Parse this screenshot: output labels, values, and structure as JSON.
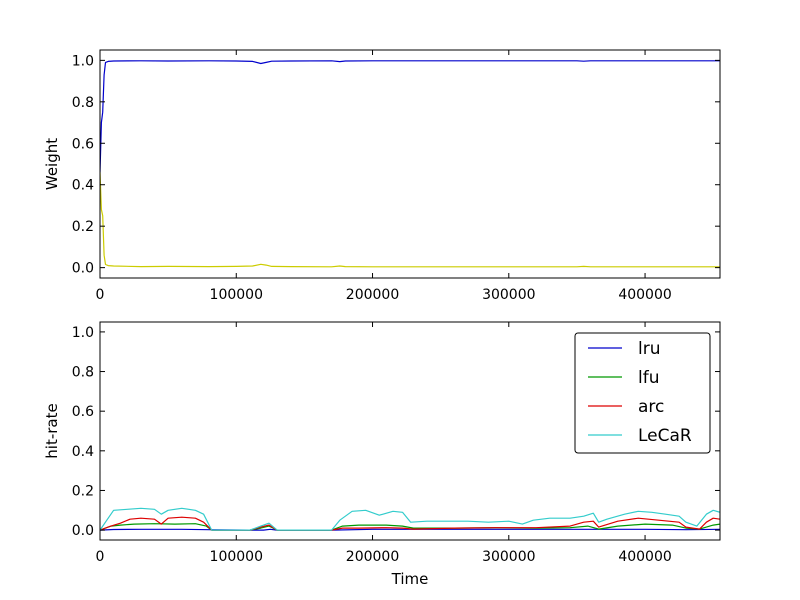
{
  "chart_data": [
    {
      "type": "line",
      "title": "",
      "xlabel": "",
      "ylabel": "Weight",
      "xlim": [
        0,
        455000
      ],
      "ylim": [
        -0.05,
        1.05
      ],
      "xticks": [
        "0",
        "100000",
        "200000",
        "300000",
        "400000"
      ],
      "yticks": [
        "0.0",
        "0.2",
        "0.4",
        "0.6",
        "0.8",
        "1.0"
      ],
      "grid": false,
      "series": [
        {
          "color": "#0000cc",
          "x": [
            0,
            1000,
            2000,
            3000,
            4000,
            6000,
            10000,
            30000,
            50000,
            80000,
            100000,
            112000,
            118000,
            122000,
            126000,
            140000,
            170000,
            176000,
            180000,
            200000,
            250000,
            300000,
            350000,
            355000,
            360000,
            400000,
            430000,
            455000
          ],
          "y": [
            0.46,
            0.7,
            0.75,
            0.93,
            0.99,
            0.995,
            0.997,
            0.998,
            0.997,
            0.998,
            0.997,
            0.995,
            0.985,
            0.99,
            0.996,
            0.997,
            0.998,
            0.994,
            0.997,
            0.998,
            0.998,
            0.998,
            0.998,
            0.996,
            0.998,
            0.998,
            0.998,
            0.998
          ]
        },
        {
          "color": "#cccc00",
          "x": [
            0,
            1000,
            2000,
            3000,
            4000,
            6000,
            10000,
            30000,
            50000,
            80000,
            100000,
            112000,
            118000,
            122000,
            126000,
            140000,
            170000,
            176000,
            180000,
            200000,
            250000,
            300000,
            350000,
            355000,
            360000,
            400000,
            430000,
            455000
          ],
          "y": [
            0.46,
            0.28,
            0.25,
            0.06,
            0.015,
            0.01,
            0.008,
            0.005,
            0.006,
            0.005,
            0.006,
            0.008,
            0.016,
            0.012,
            0.006,
            0.005,
            0.004,
            0.008,
            0.005,
            0.004,
            0.004,
            0.004,
            0.004,
            0.006,
            0.004,
            0.004,
            0.004,
            0.004
          ]
        }
      ]
    },
    {
      "type": "line",
      "title": "",
      "xlabel": "Time",
      "ylabel": "hit-rate",
      "xlim": [
        0,
        455000
      ],
      "ylim": [
        -0.05,
        1.05
      ],
      "xticks": [
        "0",
        "100000",
        "200000",
        "300000",
        "400000"
      ],
      "yticks": [
        "0.0",
        "0.2",
        "0.4",
        "0.6",
        "0.8",
        "1.0"
      ],
      "grid": false,
      "legend": "top-right",
      "series": [
        {
          "name": "lru",
          "color": "#0000cc",
          "x": [
            0,
            10000,
            30000,
            60000,
            80000,
            110000,
            120000,
            125000,
            130000,
            170000,
            200000,
            240000,
            280000,
            320000,
            360000,
            400000,
            430000,
            455000
          ],
          "y": [
            0,
            0.003,
            0.004,
            0.004,
            0.002,
            0.0,
            0.0,
            0.004,
            0.0,
            0.0,
            0.004,
            0.004,
            0.004,
            0.004,
            0.004,
            0.004,
            0.002,
            0.004
          ]
        },
        {
          "name": "lfu",
          "color": "#009900",
          "x": [
            0,
            8000,
            15000,
            25000,
            40000,
            55000,
            70000,
            78000,
            82000,
            110000,
            118000,
            124000,
            130000,
            170000,
            178000,
            190000,
            210000,
            222000,
            230000,
            260000,
            290000,
            320000,
            345000,
            358000,
            366000,
            380000,
            400000,
            420000,
            430000,
            440000,
            450000,
            455000
          ],
          "y": [
            0,
            0.02,
            0.025,
            0.03,
            0.032,
            0.03,
            0.032,
            0.02,
            0.0,
            0.0,
            0.01,
            0.02,
            0.0,
            0.0,
            0.02,
            0.025,
            0.025,
            0.02,
            0.01,
            0.01,
            0.012,
            0.01,
            0.012,
            0.02,
            0.005,
            0.02,
            0.03,
            0.025,
            0.01,
            0.005,
            0.025,
            0.03
          ]
        },
        {
          "name": "arc",
          "color": "#dd0000",
          "x": [
            0,
            8000,
            15000,
            22000,
            30000,
            40000,
            45000,
            50000,
            60000,
            70000,
            76000,
            82000,
            110000,
            118000,
            124000,
            130000,
            170000,
            178000,
            190000,
            210000,
            222000,
            230000,
            260000,
            290000,
            320000,
            345000,
            355000,
            362000,
            366000,
            380000,
            395000,
            410000,
            425000,
            430000,
            440000,
            445000,
            450000,
            455000
          ],
          "y": [
            0,
            0.02,
            0.035,
            0.055,
            0.06,
            0.055,
            0.03,
            0.06,
            0.065,
            0.06,
            0.04,
            0.0,
            0.0,
            0.015,
            0.025,
            0.0,
            0.0,
            0.01,
            0.01,
            0.012,
            0.01,
            0.005,
            0.01,
            0.012,
            0.012,
            0.02,
            0.04,
            0.045,
            0.015,
            0.045,
            0.06,
            0.05,
            0.04,
            0.015,
            0.005,
            0.04,
            0.06,
            0.055
          ]
        },
        {
          "name": "LeCaR",
          "color": "#33cccc",
          "x": [
            0,
            5000,
            10000,
            20000,
            30000,
            40000,
            45000,
            50000,
            60000,
            70000,
            76000,
            82000,
            110000,
            118000,
            124000,
            130000,
            170000,
            176000,
            185000,
            195000,
            205000,
            215000,
            222000,
            228000,
            240000,
            255000,
            270000,
            285000,
            300000,
            310000,
            318000,
            330000,
            345000,
            355000,
            362000,
            366000,
            372000,
            385000,
            395000,
            405000,
            415000,
            425000,
            430000,
            438000,
            445000,
            450000,
            455000
          ],
          "y": [
            0,
            0.05,
            0.1,
            0.105,
            0.11,
            0.105,
            0.08,
            0.1,
            0.11,
            0.1,
            0.08,
            0.0,
            0.0,
            0.02,
            0.035,
            0.0,
            0.0,
            0.05,
            0.095,
            0.1,
            0.075,
            0.095,
            0.09,
            0.04,
            0.045,
            0.045,
            0.045,
            0.04,
            0.045,
            0.03,
            0.05,
            0.06,
            0.06,
            0.07,
            0.085,
            0.04,
            0.055,
            0.08,
            0.095,
            0.09,
            0.08,
            0.07,
            0.04,
            0.02,
            0.08,
            0.1,
            0.09
          ]
        }
      ]
    }
  ]
}
